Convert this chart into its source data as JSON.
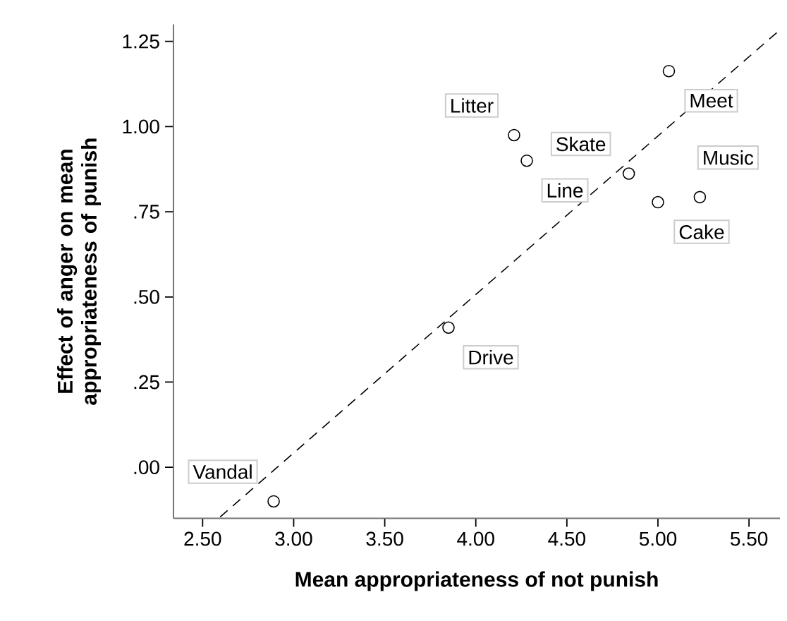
{
  "chart_data": {
    "type": "scatter",
    "xlabel": "Mean appropriateness of not punish",
    "ylabel": "Effect of anger on mean appropriateness of punish",
    "xlim": [
      2.34,
      5.67
    ],
    "ylim": [
      -0.15,
      1.3
    ],
    "xticks": [
      {
        "value": 2.5,
        "label": "2.50"
      },
      {
        "value": 3,
        "label": "3.00"
      },
      {
        "value": 3.5,
        "label": "3.50"
      },
      {
        "value": 4,
        "label": "4.00"
      },
      {
        "value": 4.5,
        "label": "4.50"
      },
      {
        "value": 5,
        "label": "5.00"
      },
      {
        "value": 5.5,
        "label": "5.50"
      }
    ],
    "yticks": [
      {
        "value": 0,
        "label": ".00"
      },
      {
        "value": 0.25,
        "label": ".25"
      },
      {
        "value": 0.5,
        "label": ".50"
      },
      {
        "value": 0.75,
        "label": ".75"
      },
      {
        "value": 1,
        "label": "1.00"
      },
      {
        "value": 1.25,
        "label": "1.25"
      }
    ],
    "series": [
      {
        "color": "#000000",
        "marker": "circle",
        "x": [
          2.89,
          3.85,
          4.21,
          4.84,
          4.28,
          5.06,
          5.23,
          5.0
        ],
        "values": [
          -0.1,
          0.41,
          0.975,
          0.862,
          0.9,
          1.163,
          0.793,
          0.778
        ]
      },
      {
        "type": "line",
        "color": "#000000",
        "line_style": "dashed",
        "marker": "none",
        "x": [
          2.596,
          5.67
        ],
        "values": [
          -0.146,
          1.284
        ]
      }
    ],
    "annotations": [
      {
        "text": "Vandal",
        "x": 2.89,
        "y": -0.1
      },
      {
        "text": "Drive",
        "x": 3.85,
        "y": 0.41
      },
      {
        "text": "Litter",
        "x": 4.21,
        "y": 0.975
      },
      {
        "text": "Skate",
        "x": 4.84,
        "y": 0.862
      },
      {
        "text": "Line",
        "x": 4.28,
        "y": 0.9
      },
      {
        "text": "Meet",
        "x": 5.06,
        "y": 1.163
      },
      {
        "text": "Music",
        "x": 5.23,
        "y": 0.793
      },
      {
        "text": "Cake",
        "x": 5.0,
        "y": 0.778
      }
    ]
  }
}
